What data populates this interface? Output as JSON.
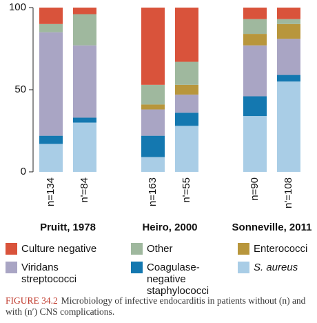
{
  "chart_data": {
    "type": "stacked-bar",
    "categories": [
      "n=134",
      "n'=84",
      "n=163",
      "n'=55",
      "n=90",
      "n'=108"
    ],
    "groups": [
      "Pruitt, 1978",
      "Heiro, 2000",
      "Sonneville, 2011"
    ],
    "series": [
      {
        "name": "Culture negative",
        "color": "#d9533b",
        "values": [
          10,
          4,
          47,
          33,
          7,
          7
        ]
      },
      {
        "name": "Other",
        "color": "#9fb89e",
        "values": [
          5,
          19,
          12,
          14,
          9,
          3
        ]
      },
      {
        "name": "Enterococci",
        "color": "#b8963c",
        "values": [
          0,
          0,
          3,
          6,
          7,
          9
        ]
      },
      {
        "name": "Viridans streptococci",
        "color": "#a9a5c4",
        "values": [
          63,
          44,
          16,
          11,
          31,
          22
        ]
      },
      {
        "name": "Coagulase-negative staphylococci",
        "color": "#1478b0",
        "values": [
          5,
          3,
          13,
          8,
          12,
          4
        ]
      },
      {
        "name": "S. aureus",
        "color": "#a9cde6",
        "values": [
          17,
          30,
          9,
          28,
          34,
          55
        ]
      }
    ],
    "ylim": [
      0,
      100
    ],
    "yticks": [
      0,
      50,
      100
    ],
    "caption": {
      "label": "FIGURE 34.2",
      "text": "Microbiology of infective endocarditis in patients without (n) and with (n′) CNS complications."
    }
  }
}
